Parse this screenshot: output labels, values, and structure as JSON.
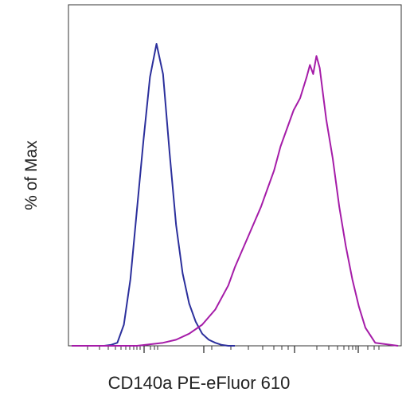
{
  "chart_data": {
    "type": "area",
    "xlabel": "CD140a PE-eFluor 610",
    "ylabel": "% of Max",
    "x_scale": "logicle",
    "ylim": [
      0,
      100
    ],
    "grid": false,
    "series": [
      {
        "color": "#2b2f9c",
        "x": [
          0.0,
          0.04,
          0.08,
          0.1,
          0.12,
          0.14,
          0.16,
          0.18,
          0.2,
          0.22,
          0.24,
          0.26,
          0.28,
          0.3,
          0.32,
          0.34,
          0.36,
          0.38,
          0.4,
          0.42,
          0.44,
          0.46,
          0.48,
          0.5
        ],
        "values": [
          0,
          0,
          0,
          0,
          0.3,
          1,
          7,
          22,
          45,
          68,
          89,
          100,
          90,
          64,
          40,
          24,
          14,
          8,
          4,
          2,
          1,
          0.3,
          0,
          0
        ]
      },
      {
        "color": "#a51ca8",
        "x": [
          0.0,
          0.1,
          0.2,
          0.24,
          0.28,
          0.32,
          0.36,
          0.4,
          0.44,
          0.48,
          0.5,
          0.52,
          0.54,
          0.56,
          0.58,
          0.6,
          0.62,
          0.64,
          0.66,
          0.68,
          0.7,
          0.72,
          0.73,
          0.74,
          0.75,
          0.76,
          0.78,
          0.8,
          0.82,
          0.84,
          0.86,
          0.88,
          0.9,
          0.93,
          1.0
        ],
        "values": [
          0,
          0,
          0,
          0.5,
          1,
          2,
          4,
          7,
          12,
          20,
          26,
          31,
          36,
          41,
          46,
          52,
          58,
          66,
          72,
          78,
          82,
          89,
          93,
          90,
          96,
          92,
          75,
          62,
          46,
          33,
          22,
          13,
          6,
          1,
          0
        ]
      }
    ]
  }
}
